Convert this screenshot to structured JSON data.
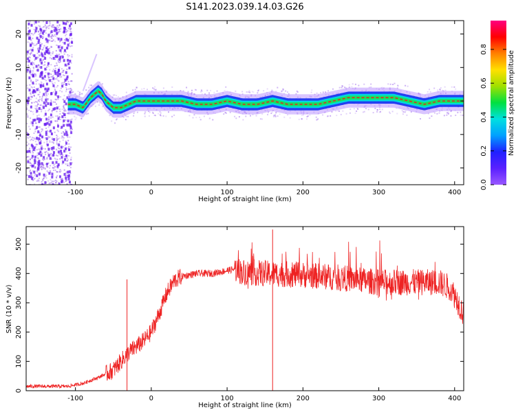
{
  "title": "S141.2023.039.14.03.G26",
  "colors": {
    "snr_line": "#ee2222",
    "track_core": "#e82020",
    "track_inner": "#18e060",
    "track_outer": "#1030f0",
    "noise": "#8a4be8",
    "colorbar": [
      "#9a58ff",
      "#5a20ff",
      "#2020ff",
      "#00a0ff",
      "#00e0e0",
      "#00e040",
      "#a0e000",
      "#ffe000",
      "#ff8000",
      "#ff0000",
      "#ff0080"
    ]
  },
  "chart_data": [
    {
      "type": "heatmap",
      "xlabel": "Height of straight line (km)",
      "ylabel": "Frequency (Hz)",
      "colorbar_label": "Normalized spectral amplitude",
      "xlim": [
        -165,
        412
      ],
      "ylim": [
        -25,
        24
      ],
      "xticks": [
        -100,
        0,
        100,
        200,
        300,
        400
      ],
      "yticks": [
        20,
        10,
        0,
        -10,
        -20
      ],
      "colorbar_ticks": [
        0.0,
        0.2,
        0.4,
        0.6,
        0.8
      ],
      "colorbar_range": [
        0,
        0.97
      ],
      "grid": false,
      "ridge": {
        "x": [
          -110,
          -100,
          -90,
          -80,
          -75,
          -70,
          -65,
          -60,
          -50,
          -40,
          -30,
          -20,
          -10,
          0,
          20,
          40,
          60,
          80,
          100,
          120,
          140,
          160,
          180,
          200,
          220,
          240,
          260,
          280,
          300,
          320,
          340,
          360,
          380,
          400,
          412
        ],
        "y": [
          -1,
          -1,
          -2,
          1,
          2,
          3,
          2,
          0,
          -2,
          -2,
          -1,
          0,
          0,
          0,
          0,
          0,
          -1,
          -1,
          0,
          -1,
          -1,
          0,
          -1,
          -1,
          -1,
          0,
          1,
          1,
          1,
          1,
          0,
          -1,
          0,
          0,
          0
        ]
      }
    },
    {
      "type": "line",
      "xlabel": "Height of straight line (km)",
      "ylabel": "SNR (10 * v/v)",
      "xlim": [
        -165,
        412
      ],
      "ylim": [
        0,
        560
      ],
      "xticks": [
        -100,
        0,
        100,
        200,
        300,
        400
      ],
      "yticks": [
        0,
        100,
        200,
        300,
        400,
        500
      ],
      "grid": false,
      "envelope": {
        "x": [
          -165,
          -110,
          -90,
          -70,
          -50,
          -40,
          -30,
          -20,
          -10,
          0,
          10,
          20,
          30,
          40,
          60,
          80,
          100,
          110,
          120,
          150,
          200,
          250,
          300,
          350,
          380,
          395,
          405,
          412
        ],
        "y": [
          15,
          15,
          25,
          45,
          70,
          100,
          130,
          150,
          170,
          200,
          260,
          330,
          375,
          390,
          400,
          400,
          410,
          415,
          405,
          400,
          395,
          385,
          370,
          370,
          370,
          350,
          300,
          260
        ]
      },
      "annotations": [
        {
          "x": -32,
          "y": 380,
          "note": "isolated spike"
        },
        {
          "x": 160,
          "y": 550,
          "note": "max spike"
        }
      ]
    }
  ]
}
